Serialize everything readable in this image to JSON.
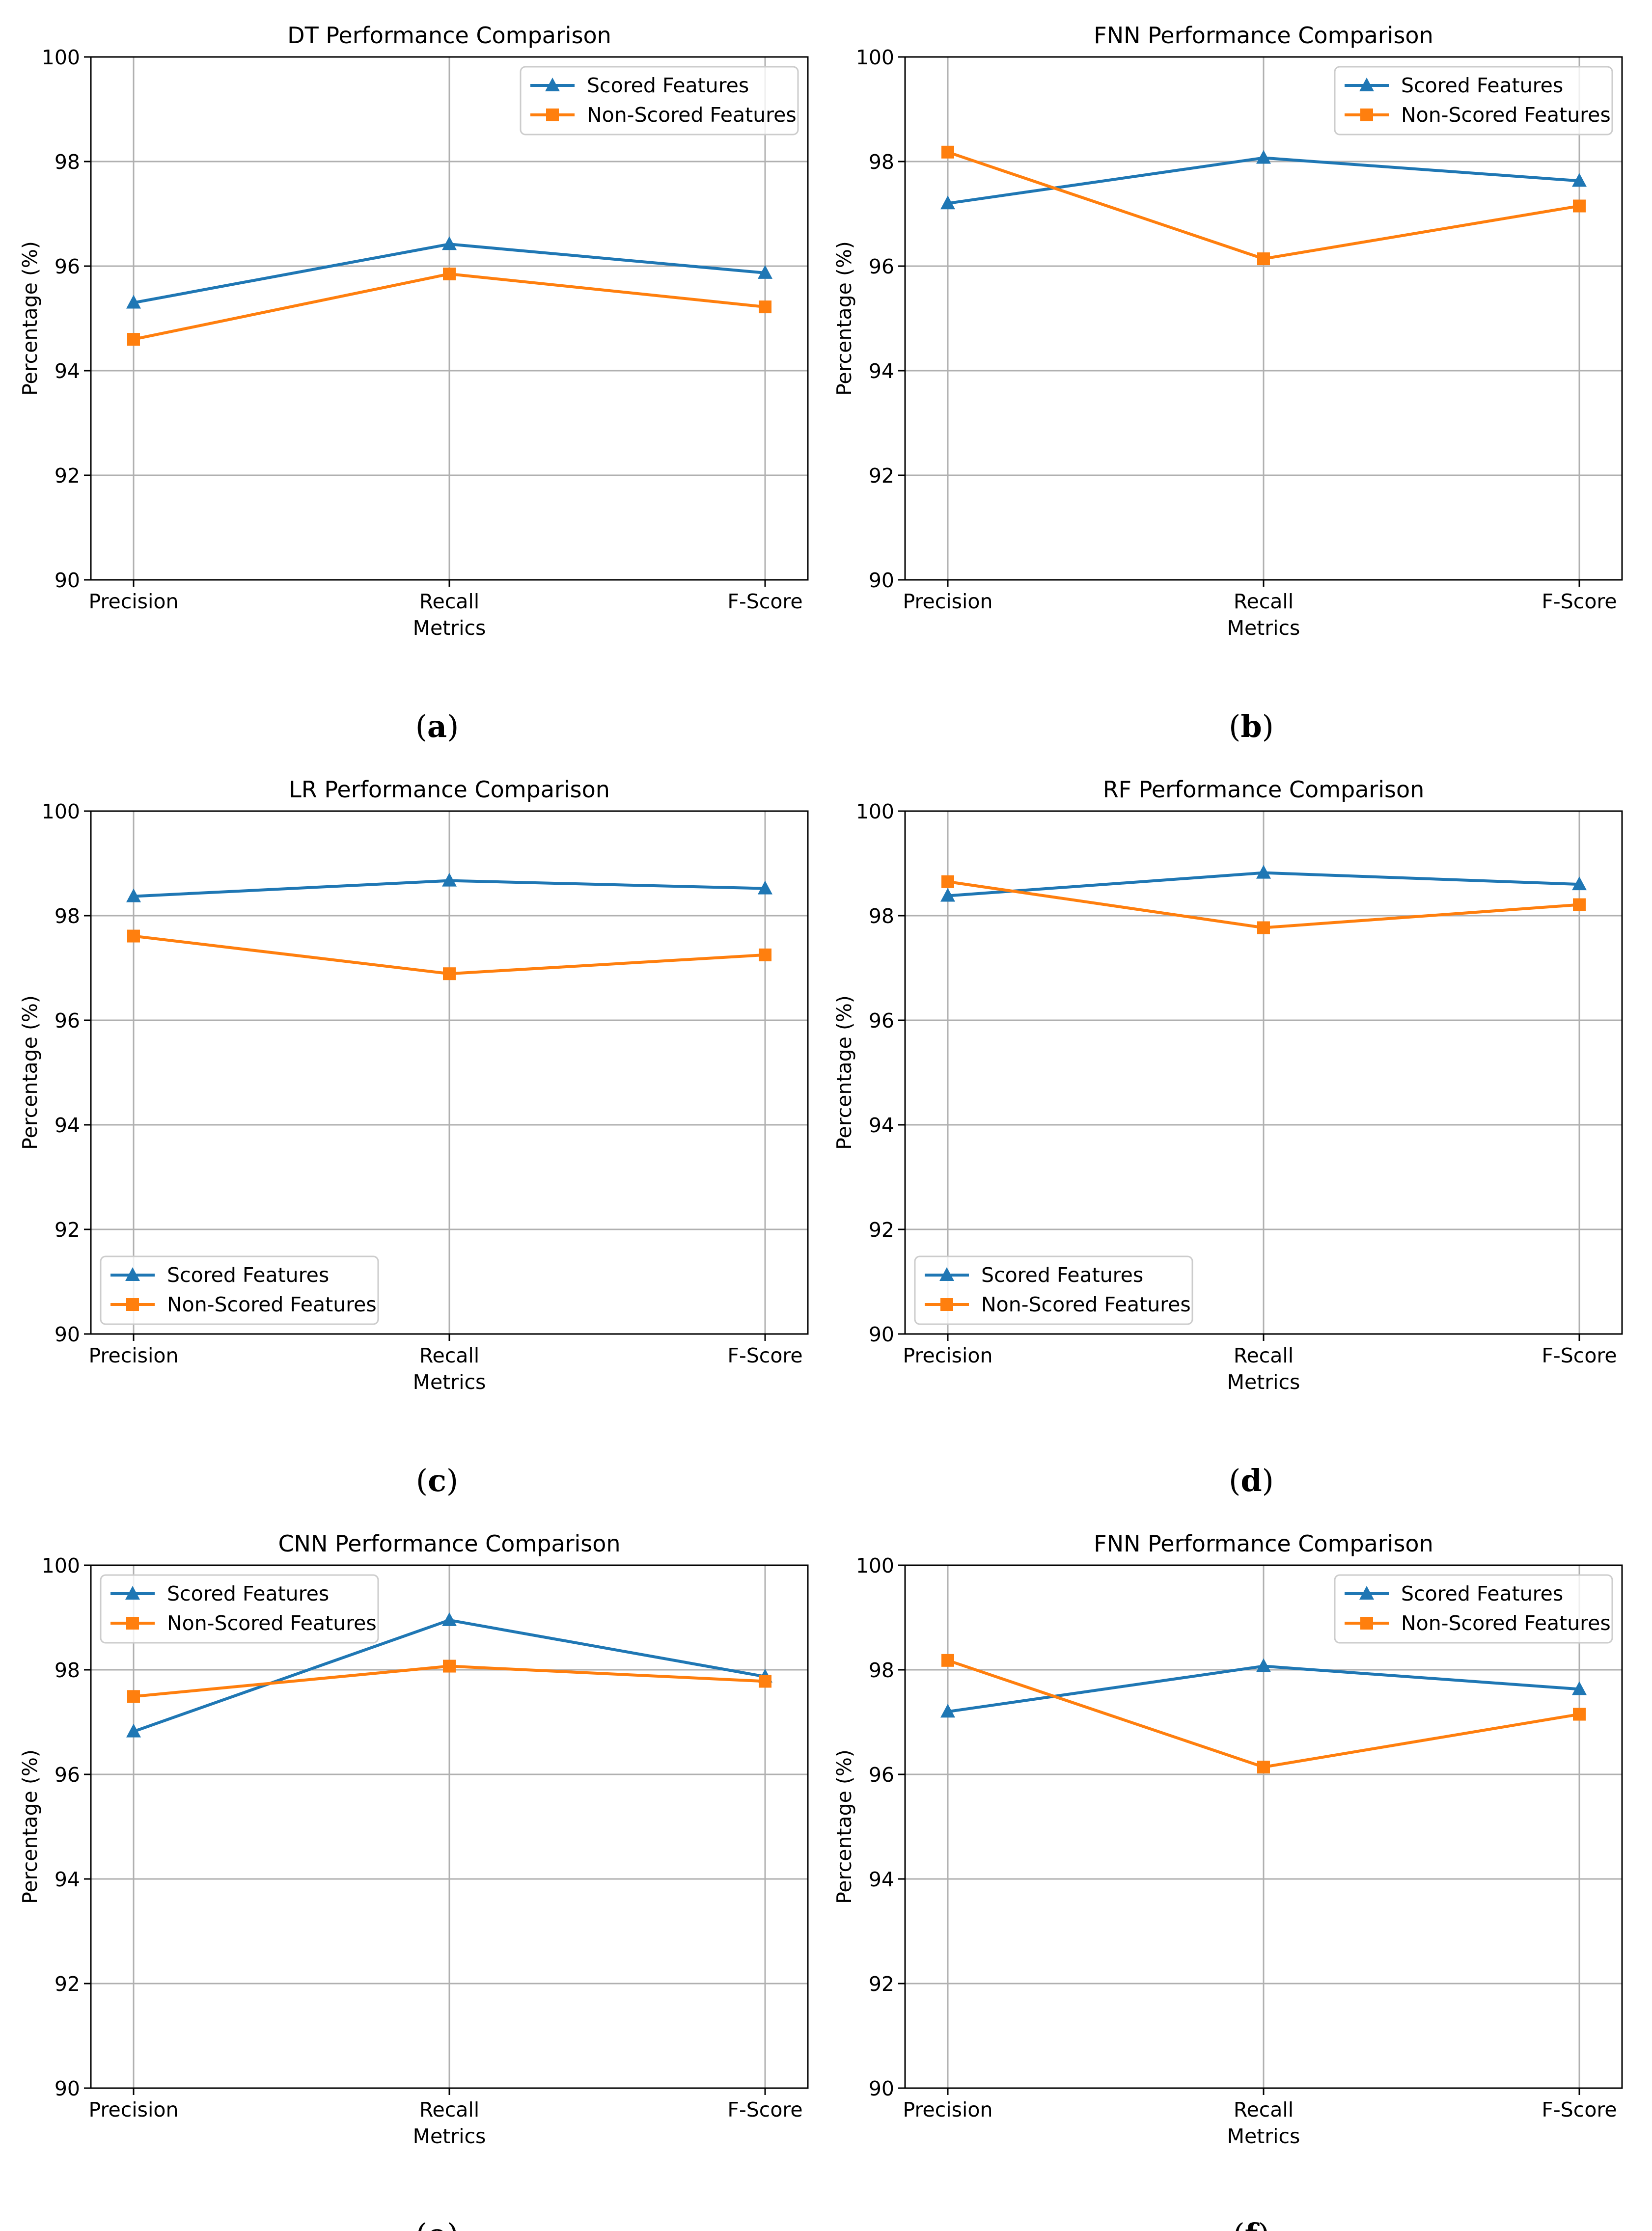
{
  "colors": {
    "scored": "#1f77b4",
    "non_scored": "#ff7f0e"
  },
  "chart_data": [
    {
      "type": "line",
      "title": "DT Performance Comparison",
      "xlabel": "Metrics",
      "ylabel": "Percentage (%)",
      "categories": [
        "Precision",
        "Recall",
        "F-Score"
      ],
      "ylim": [
        90,
        100
      ],
      "yticks": [
        "90",
        "92",
        "94",
        "96",
        "98",
        "100"
      ],
      "grid": true,
      "legend_position": "upper-right",
      "caption_letter": "a",
      "series": [
        {
          "name": "Scored Features",
          "marker": "triangle",
          "values": [
            95.3,
            96.42,
            95.87
          ]
        },
        {
          "name": "Non-Scored Features",
          "marker": "square",
          "values": [
            94.6,
            95.85,
            95.22
          ]
        }
      ]
    },
    {
      "type": "line",
      "title": "FNN Performance Comparison",
      "xlabel": "Metrics",
      "ylabel": "Percentage (%)",
      "categories": [
        "Precision",
        "Recall",
        "F-Score"
      ],
      "ylim": [
        90,
        100
      ],
      "yticks": [
        "90",
        "92",
        "94",
        "96",
        "98",
        "100"
      ],
      "grid": true,
      "legend_position": "upper-right",
      "caption_letter": "b",
      "series": [
        {
          "name": "Scored Features",
          "marker": "triangle",
          "values": [
            97.2,
            98.07,
            97.63
          ]
        },
        {
          "name": "Non-Scored Features",
          "marker": "square",
          "values": [
            98.18,
            96.14,
            97.15
          ]
        }
      ]
    },
    {
      "type": "line",
      "title": "LR Performance Comparison",
      "xlabel": "Metrics",
      "ylabel": "Percentage (%)",
      "categories": [
        "Precision",
        "Recall",
        "F-Score"
      ],
      "ylim": [
        90,
        100
      ],
      "yticks": [
        "90",
        "92",
        "94",
        "96",
        "98",
        "100"
      ],
      "grid": true,
      "legend_position": "lower-left",
      "caption_letter": "c",
      "series": [
        {
          "name": "Scored Features",
          "marker": "triangle",
          "values": [
            98.37,
            98.67,
            98.52
          ]
        },
        {
          "name": "Non-Scored Features",
          "marker": "square",
          "values": [
            97.61,
            96.89,
            97.25
          ]
        }
      ]
    },
    {
      "type": "line",
      "title": "RF Performance Comparison",
      "xlabel": "Metrics",
      "ylabel": "Percentage (%)",
      "categories": [
        "Precision",
        "Recall",
        "F-Score"
      ],
      "ylim": [
        90,
        100
      ],
      "yticks": [
        "90",
        "92",
        "94",
        "96",
        "98",
        "100"
      ],
      "grid": true,
      "legend_position": "lower-left",
      "caption_letter": "d",
      "series": [
        {
          "name": "Scored Features",
          "marker": "triangle",
          "values": [
            98.38,
            98.82,
            98.6
          ]
        },
        {
          "name": "Non-Scored Features",
          "marker": "square",
          "values": [
            98.65,
            97.77,
            98.21
          ]
        }
      ]
    },
    {
      "type": "line",
      "title": "CNN Performance Comparison",
      "xlabel": "Metrics",
      "ylabel": "Percentage (%)",
      "categories": [
        "Precision",
        "Recall",
        "F-Score"
      ],
      "ylim": [
        90,
        100
      ],
      "yticks": [
        "90",
        "92",
        "94",
        "96",
        "98",
        "100"
      ],
      "grid": true,
      "legend_position": "upper-left",
      "caption_letter": "e",
      "series": [
        {
          "name": "Scored Features",
          "marker": "triangle",
          "values": [
            96.82,
            98.95,
            97.87
          ]
        },
        {
          "name": "Non-Scored Features",
          "marker": "square",
          "values": [
            97.49,
            98.07,
            97.78
          ]
        }
      ]
    },
    {
      "type": "line",
      "title": "FNN Performance Comparison",
      "xlabel": "Metrics",
      "ylabel": "Percentage (%)",
      "categories": [
        "Precision",
        "Recall",
        "F-Score"
      ],
      "ylim": [
        90,
        100
      ],
      "yticks": [
        "90",
        "92",
        "94",
        "96",
        "98",
        "100"
      ],
      "grid": true,
      "legend_position": "upper-right",
      "caption_letter": "f",
      "series": [
        {
          "name": "Scored Features",
          "marker": "triangle",
          "values": [
            97.2,
            98.07,
            97.63
          ]
        },
        {
          "name": "Non-Scored Features",
          "marker": "square",
          "values": [
            98.18,
            96.14,
            97.15
          ]
        }
      ]
    }
  ]
}
